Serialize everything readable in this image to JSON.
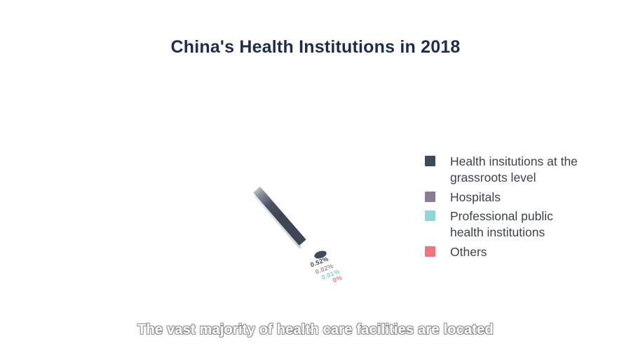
{
  "title": "China's Health Institutions in 2018",
  "caption": "The vast majority of health care facilities are located",
  "colors": {
    "title_text": "#1e2d4d",
    "legend_text": "#3c434e",
    "grassroots": "#3e4a59",
    "hospitals": "#8b7b93",
    "public_health": "#92d5d8",
    "others": "#f0737d",
    "bar_dark": "#3d4654",
    "bar_edge_light": "#d7dade",
    "pct_grassroots": "#3e4756",
    "pct_hospitals": "#9793a0",
    "pct_public_health": "#85ced4",
    "pct_others": "#ee7d84"
  },
  "legend": {
    "items": [
      {
        "label": "Health insitutions at the grassroots level",
        "color": "#3e4a59"
      },
      {
        "label": "Hospitals",
        "color": "#8b7b93"
      },
      {
        "label": "Professional public health institutions",
        "color": "#92d5d8"
      },
      {
        "label": "Others",
        "color": "#f0737d"
      }
    ]
  },
  "chart_data": {
    "type": "pie",
    "title": "China's Health Institutions in 2018",
    "categories": [
      "Health insitutions at the grassroots level",
      "Hospitals",
      "Professional public health institutions",
      "Others"
    ],
    "values": [
      0.52,
      0.02,
      0.01,
      0
    ],
    "value_labels": [
      "0.52%",
      "0.02%",
      "0.01%",
      "0%"
    ],
    "legend_position": "right",
    "state": "mid-animation frame: pie rendered as rotated bar fragment and small ellipse"
  }
}
